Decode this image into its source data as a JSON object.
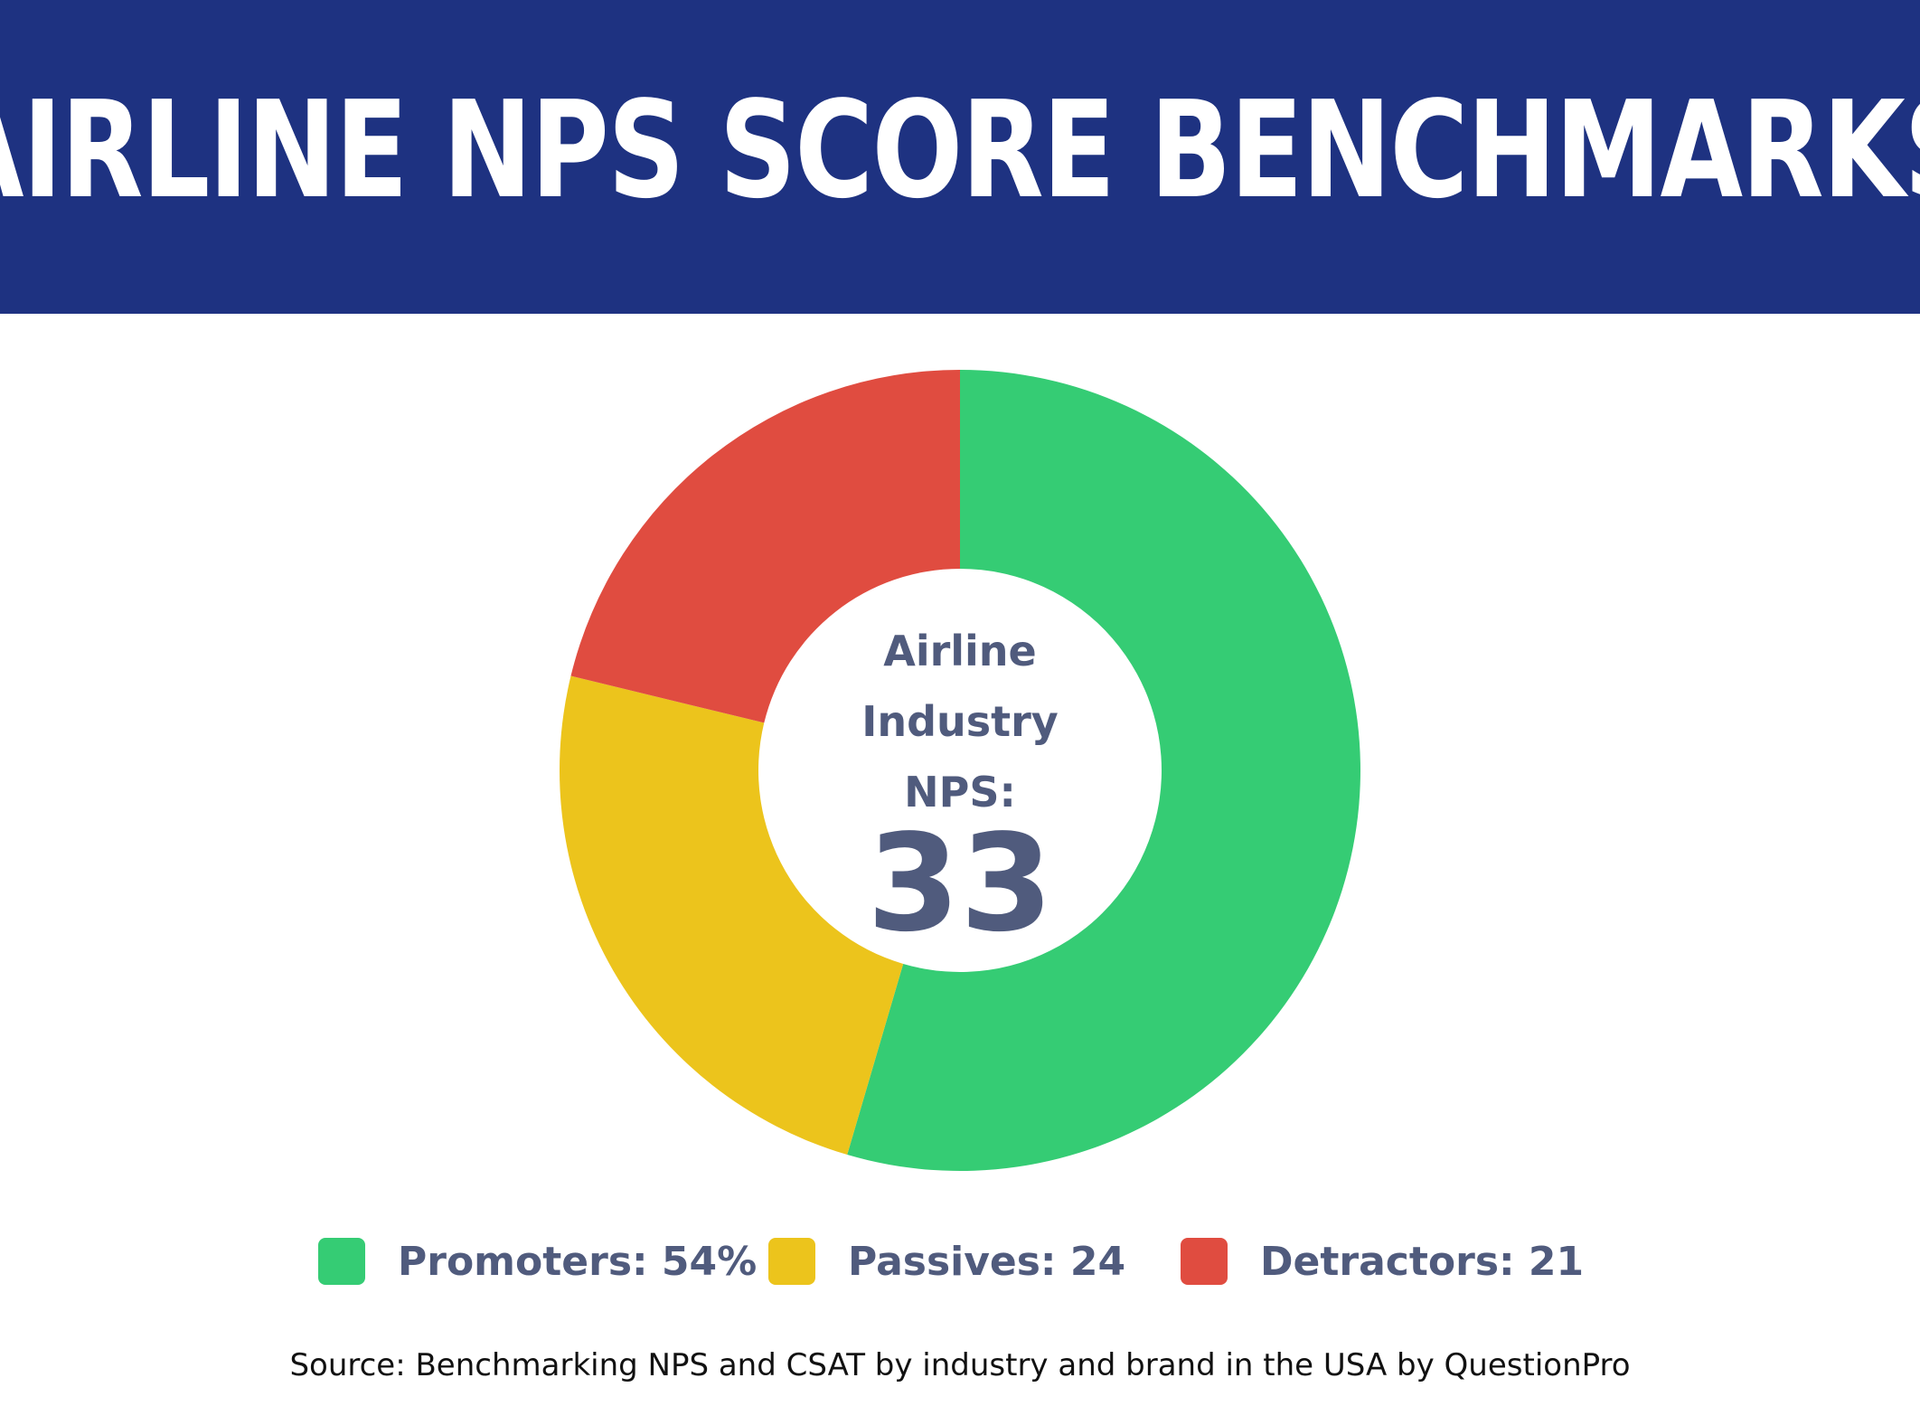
{
  "title": "AIRLINE NPS SCORE BENCHMARKS",
  "center": {
    "line1": "Airline",
    "line2": "Industry",
    "line3": "NPS:",
    "value": "33"
  },
  "legend": [
    {
      "label": "Promoters: 54%",
      "color": "#35cc74"
    },
    {
      "label": "Passives: 24",
      "color": "#ecc41c"
    },
    {
      "label": "Detractors: 21",
      "color": "#e04c40"
    }
  ],
  "source": "Source: Benchmarking NPS and CSAT by industry and brand in the USA by QuestionPro",
  "colors": {
    "banner": "#1e3281",
    "text": "#505b7d"
  },
  "chart_data": {
    "type": "pie",
    "donut": true,
    "categories": [
      "Promoters",
      "Passives",
      "Detractors"
    ],
    "values": [
      54,
      24,
      21
    ],
    "colors": [
      "#35cc74",
      "#ecc41c",
      "#e04c40"
    ],
    "title": "AIRLINE NPS SCORE BENCHMARKS",
    "center_text": "Airline Industry NPS: 33",
    "legend_position": "bottom",
    "start_angle": "top",
    "direction": "clockwise"
  }
}
